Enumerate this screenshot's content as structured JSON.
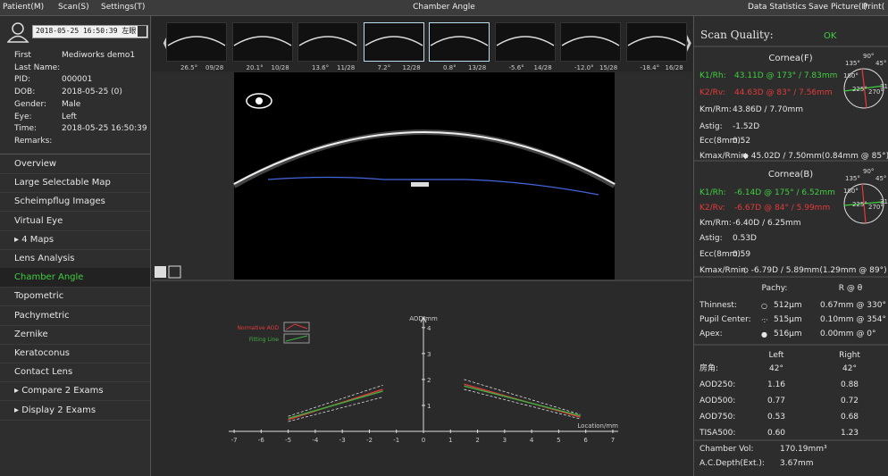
{
  "menu": {
    "left": [
      "Patient(M)",
      "Scan(S)",
      "Settings(T)"
    ],
    "title": "Chamber Angle",
    "right": [
      "Data Statistics",
      "Save Picture(I)",
      "Print("
    ]
  },
  "patient": {
    "exam": "2018-05-25 16:50:39 左眼",
    "fields": [
      {
        "label": "First",
        "value": "Mediworks demo1"
      },
      {
        "label": "Last Name:"
      },
      {
        "label": "PID:",
        "value": "000001"
      },
      {
        "label": "DOB:",
        "value": "2018-05-25  (0)"
      },
      {
        "label": "Gender:",
        "value": "Male"
      },
      {
        "label": "Eye:",
        "value": "Left"
      },
      {
        "label": "Time:",
        "value": "2018-05-25 16:50:39"
      },
      {
        "label": "Remarks:"
      }
    ]
  },
  "nav": [
    "Overview",
    "Large Selectable Map",
    "Scheimpflug Images",
    "Virtual Eye",
    "▸ 4 Maps",
    "Lens Analysis",
    "Chamber Angle",
    "Topometric",
    "Pachymetric",
    "Zernike",
    "Keratoconus",
    "Contact Lens",
    "▸ Compare 2 Exams",
    "▸ Display 2 Exams"
  ],
  "nav_selected": 6,
  "thumbnails": [
    {
      "angle": "26.5°",
      "index": "09/28"
    },
    {
      "angle": "20.1°",
      "index": "10/28"
    },
    {
      "angle": "13.6°",
      "index": "11/28"
    },
    {
      "angle": "7.2°",
      "index": "12/28"
    },
    {
      "angle": "0.8°",
      "index": "13/28"
    },
    {
      "angle": "-5.6°",
      "index": "14/28"
    },
    {
      "angle": "-12.0°",
      "index": "15/28"
    },
    {
      "angle": "-18.4°",
      "index": "16/28"
    }
  ],
  "thumbnails_selected": [
    3,
    4
  ],
  "scan_quality": {
    "label": "Scan Quality:",
    "value": "OK",
    "color": "#3fcf3f"
  },
  "cornea": [
    {
      "title": "Cornea(F)",
      "rows": [
        {
          "label": "K1/Rh:",
          "value": "43.11D @ 173° / 7.83mm",
          "color": "#3fcf3f"
        },
        {
          "label": "K2/Rv:",
          "value": "44.63D @ 83° / 7.56mm",
          "color": "#e53a3a"
        },
        {
          "label": "Km/Rm:",
          "value": "43.86D / 7.70mm"
        },
        {
          "label": "Astig:",
          "value": "-1.52D"
        },
        {
          "label": "Ecc(8mm):",
          "value": "0.52"
        },
        {
          "label": "Kmax/Rmin:",
          "value": "◆ 45.02D / 7.50mm(0.84mm @ 85°)"
        }
      ]
    },
    {
      "title": "Cornea(B)",
      "rows": [
        {
          "label": "K1/Rh:",
          "value": "-6.14D @ 175° / 6.52mm",
          "color": "#3fcf3f"
        },
        {
          "label": "K2/Rv:",
          "value": "-6.67D @ 84° / 5.99mm",
          "color": "#e53a3a"
        },
        {
          "label": "Km/Rm:",
          "value": "-6.40D / 6.25mm"
        },
        {
          "label": "Astig:",
          "value": "0.53D"
        },
        {
          "label": "Ecc(8mm):",
          "value": "0.59"
        },
        {
          "label": "Kmax/Rmin:",
          "value": "◇ -6.79D / 5.89mm(1.29mm @ 89°)"
        }
      ]
    }
  ],
  "axis_labels": [
    "90°",
    "45°",
    "135°",
    "180°",
    "225°",
    "270°",
    "315°"
  ],
  "pachy": {
    "header": [
      "Pachy:",
      "R @ θ"
    ],
    "rows": [
      {
        "label": "Thinnest:",
        "symbol": "○",
        "value": "512μm",
        "position": "0.67mm @ 330°"
      },
      {
        "label": "Pupil Center:",
        "symbol": "·:·",
        "value": "515μm",
        "position": "0.10mm @ 354°"
      },
      {
        "label": "Apex:",
        "symbol": "●",
        "value": "516μm",
        "position": "0.00mm @ 0°"
      }
    ]
  },
  "angle": {
    "header": [
      "Left",
      "Right"
    ],
    "rows": [
      [
        "房角:",
        "42°",
        "42°"
      ],
      [
        "AOD250:",
        "1.16",
        "0.88"
      ],
      [
        "AOD500:",
        "0.77",
        "0.72"
      ],
      [
        "AOD750:",
        "0.53",
        "0.68"
      ],
      [
        "TISA500:",
        "0.60",
        "1.23"
      ]
    ]
  },
  "chamber": [
    {
      "label": "Chamber Vol:",
      "value": "170.19mm³"
    },
    {
      "label": "A.C.Depth(Ext.):",
      "value": "3.67mm"
    }
  ],
  "chart_data": {
    "type": "line",
    "y_label": "AOD/mm",
    "x_label": "Location/mm",
    "x": [
      -5,
      -1.5,
      0,
      1.5,
      5.8
    ],
    "series": [
      {
        "name": "Normative AOD",
        "color": "#e53a3a",
        "values": [
          0.45,
          1.62,
          null,
          1.82,
          0.55
        ]
      },
      {
        "name": "Fitting Line",
        "color": "#3faf3f",
        "values": [
          0.5,
          1.55,
          null,
          1.75,
          0.6
        ]
      },
      {
        "color": "#dddddd",
        "dashed": true,
        "values": [
          0.58,
          1.78,
          null,
          2.0,
          0.65
        ]
      },
      {
        "color": "#dddddd",
        "dashed": true,
        "values": [
          0.38,
          1.32,
          null,
          1.62,
          0.48
        ]
      }
    ],
    "xlim": [
      -7.2,
      7.2
    ],
    "ylim": [
      0,
      4.2
    ],
    "xticks": [
      -7,
      -6,
      -5,
      -4,
      -3,
      -2,
      -1,
      0,
      1,
      2,
      3,
      4,
      5,
      6,
      7
    ],
    "yticks": [
      1,
      2,
      3,
      4
    ]
  }
}
